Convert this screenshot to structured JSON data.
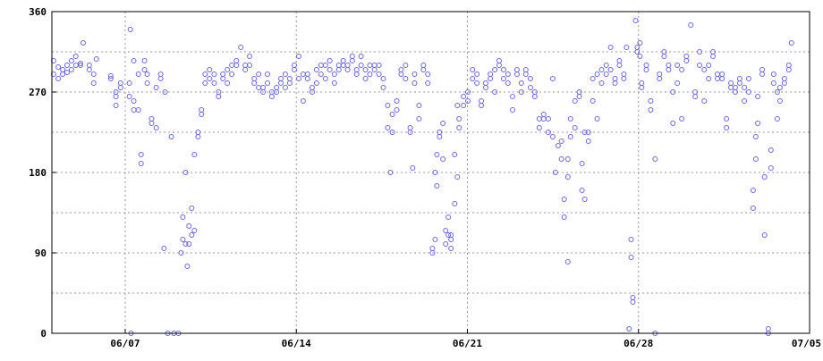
{
  "chart_data": {
    "type": "scatter",
    "color": "#6666ee",
    "grid": true,
    "xlim": [
      4,
      35
    ],
    "xticks": [
      {
        "value": 7,
        "label": "06/07"
      },
      {
        "value": 14,
        "label": "06/14"
      },
      {
        "value": 21,
        "label": "06/21"
      },
      {
        "value": 28,
        "label": "06/28"
      },
      {
        "value": 35,
        "label": "07/05"
      }
    ],
    "ylim": [
      0,
      360
    ],
    "yticks": [
      0,
      90,
      180,
      270,
      360
    ],
    "yminor": [
      45,
      135,
      225,
      315
    ],
    "x": [
      4.07,
      4.07,
      4.26,
      4.26,
      4.44,
      4.44,
      4.62,
      4.62,
      4.8,
      4.8,
      4.98,
      4.98,
      5.17,
      5.17,
      5.28,
      5.53,
      5.53,
      5.71,
      5.71,
      5.82,
      6.41,
      6.41,
      6.62,
      6.62,
      6.62,
      6.81,
      6.81,
      7.21,
      7.24,
      7.17,
      7.17,
      7.35,
      7.35,
      7.35,
      7.54,
      7.54,
      7.65,
      7.65,
      7.79,
      7.79,
      7.9,
      7.9,
      8.08,
      8.08,
      8.27,
      8.27,
      8.45,
      8.45,
      8.59,
      8.63,
      8.74,
      8.89,
      8.99,
      9.18,
      9.29,
      9.36,
      9.36,
      9.47,
      9.47,
      9.54,
      9.61,
      9.61,
      9.72,
      9.72,
      9.83,
      9.83,
      9.98,
      9.98,
      10.12,
      10.12,
      10.27,
      10.27,
      10.45,
      10.45,
      10.64,
      10.64,
      10.82,
      10.82,
      11.0,
      11.0,
      11.18,
      11.18,
      11.36,
      11.36,
      11.55,
      11.55,
      11.73,
      11.91,
      11.91,
      12.09,
      12.09,
      12.28,
      12.28,
      12.46,
      12.46,
      12.64,
      12.64,
      12.82,
      12.82,
      13.0,
      13.0,
      13.19,
      13.19,
      13.37,
      13.37,
      13.55,
      13.55,
      13.73,
      13.73,
      13.92,
      13.92,
      14.1,
      14.1,
      14.28,
      14.28,
      14.46,
      14.46,
      14.65,
      14.65,
      14.83,
      14.83,
      15.01,
      15.01,
      15.19,
      15.19,
      15.37,
      15.37,
      15.56,
      15.56,
      15.74,
      15.74,
      15.92,
      15.92,
      16.1,
      16.1,
      16.29,
      16.29,
      16.47,
      16.47,
      16.65,
      16.65,
      16.83,
      16.83,
      17.01,
      17.01,
      17.2,
      17.2,
      17.38,
      17.38,
      17.56,
      17.56,
      17.74,
      17.74,
      17.85,
      17.93,
      17.93,
      18.11,
      18.11,
      18.29,
      18.29,
      18.47,
      18.47,
      18.66,
      18.66,
      18.76,
      18.84,
      18.84,
      19.02,
      19.02,
      19.2,
      19.2,
      19.38,
      19.38,
      19.57,
      19.57,
      19.68,
      19.68,
      19.75,
      19.75,
      19.86,
      19.86,
      20.0,
      20.0,
      20.11,
      20.11,
      20.22,
      20.22,
      20.33,
      20.33,
      20.33,
      20.48,
      20.48,
      20.59,
      20.59,
      20.66,
      20.66,
      20.84,
      20.84,
      21.02,
      21.02,
      21.21,
      21.21,
      21.39,
      21.39,
      21.57,
      21.57,
      21.75,
      21.75,
      21.94,
      21.94,
      22.12,
      22.12,
      22.3,
      22.3,
      22.48,
      22.48,
      22.66,
      22.66,
      22.85,
      22.85,
      23.03,
      23.03,
      23.21,
      23.21,
      23.39,
      23.39,
      23.58,
      23.58,
      23.76,
      23.76,
      23.94,
      23.94,
      24.12,
      24.12,
      24.31,
      24.31,
      24.49,
      24.49,
      24.6,
      24.71,
      24.85,
      24.85,
      24.96,
      24.96,
      25.11,
      25.11,
      25.11,
      25.22,
      25.22,
      25.4,
      25.4,
      25.58,
      25.58,
      25.69,
      25.69,
      25.8,
      25.8,
      25.95,
      25.95,
      26.13,
      26.13,
      26.31,
      26.31,
      26.49,
      26.49,
      26.68,
      26.68,
      26.86,
      26.86,
      27.04,
      27.04,
      27.22,
      27.22,
      27.4,
      27.4,
      27.51,
      27.62,
      27.7,
      27.7,
      27.77,
      27.77,
      27.88,
      27.95,
      27.95,
      28.06,
      28.06,
      28.13,
      28.13,
      28.32,
      28.32,
      28.5,
      28.5,
      28.68,
      28.68,
      28.86,
      28.86,
      29.05,
      29.05,
      29.23,
      29.23,
      29.41,
      29.41,
      29.59,
      29.59,
      29.77,
      29.77,
      29.96,
      29.96,
      30.14,
      30.32,
      30.32,
      30.5,
      30.5,
      30.69,
      30.69,
      30.87,
      30.87,
      31.05,
      31.05,
      31.23,
      31.23,
      31.42,
      31.42,
      31.6,
      31.6,
      31.78,
      31.78,
      31.96,
      31.96,
      32.14,
      32.14,
      32.33,
      32.33,
      32.51,
      32.51,
      32.69,
      32.69,
      32.8,
      32.8,
      32.88,
      32.88,
      33.06,
      33.06,
      33.16,
      33.16,
      33.31,
      33.31,
      33.42,
      33.42,
      33.53,
      33.53,
      33.68,
      33.68,
      33.79,
      33.79,
      33.97,
      33.97,
      34.15,
      34.15,
      34.26
    ],
    "values": [
      305,
      290,
      298,
      285,
      295,
      290,
      300,
      292,
      305,
      295,
      310,
      300,
      302,
      300,
      325,
      300,
      295,
      290,
      280,
      307,
      288,
      285,
      270,
      265,
      255,
      280,
      275,
      340,
      0,
      280,
      265,
      260,
      250,
      305,
      290,
      250,
      200,
      190,
      295,
      305,
      290,
      280,
      240,
      235,
      230,
      275,
      290,
      285,
      95,
      270,
      0,
      220,
      0,
      0,
      90,
      105,
      130,
      180,
      100,
      75,
      120,
      100,
      110,
      140,
      115,
      200,
      220,
      225,
      250,
      245,
      280,
      290,
      295,
      285,
      290,
      280,
      270,
      265,
      285,
      290,
      280,
      295,
      290,
      300,
      300,
      305,
      320,
      295,
      300,
      300,
      310,
      285,
      280,
      290,
      275,
      275,
      270,
      290,
      280,
      265,
      270,
      270,
      275,
      285,
      280,
      290,
      275,
      280,
      285,
      295,
      300,
      310,
      285,
      260,
      290,
      290,
      285,
      275,
      270,
      295,
      280,
      290,
      300,
      285,
      300,
      305,
      295,
      290,
      280,
      295,
      300,
      300,
      305,
      300,
      295,
      305,
      310,
      295,
      290,
      310,
      300,
      285,
      295,
      300,
      290,
      295,
      300,
      300,
      290,
      285,
      275,
      255,
      230,
      180,
      245,
      225,
      260,
      250,
      295,
      290,
      300,
      285,
      230,
      225,
      185,
      280,
      290,
      255,
      240,
      300,
      295,
      290,
      280,
      95,
      90,
      105,
      180,
      200,
      165,
      225,
      220,
      195,
      235,
      115,
      100,
      130,
      110,
      95,
      110,
      105,
      200,
      145,
      255,
      175,
      230,
      240,
      265,
      255,
      270,
      260,
      285,
      295,
      290,
      280,
      260,
      255,
      280,
      275,
      290,
      285,
      270,
      295,
      300,
      305,
      295,
      285,
      280,
      290,
      265,
      250,
      290,
      295,
      280,
      270,
      290,
      295,
      285,
      275,
      270,
      265,
      240,
      230,
      245,
      240,
      225,
      240,
      285,
      220,
      180,
      210,
      215,
      195,
      150,
      130,
      80,
      195,
      175,
      240,
      220,
      230,
      260,
      270,
      265,
      190,
      160,
      150,
      225,
      225,
      215,
      260,
      285,
      290,
      240,
      280,
      295,
      300,
      290,
      320,
      295,
      285,
      280,
      300,
      305,
      285,
      290,
      320,
      5,
      105,
      85,
      35,
      40,
      350,
      315,
      320,
      325,
      310,
      280,
      275,
      300,
      295,
      250,
      260,
      195,
      0,
      290,
      285,
      310,
      315,
      295,
      300,
      235,
      270,
      280,
      300,
      240,
      295,
      305,
      310,
      345,
      265,
      270,
      300,
      315,
      295,
      260,
      300,
      285,
      315,
      310,
      285,
      290,
      285,
      290,
      230,
      240,
      275,
      280,
      275,
      270,
      280,
      285,
      260,
      275,
      285,
      270,
      140,
      160,
      220,
      195,
      235,
      265,
      290,
      295,
      175,
      110,
      0,
      5,
      205,
      185,
      290,
      280,
      270,
      240,
      260,
      275,
      280,
      285,
      300,
      295,
      325
    ]
  }
}
